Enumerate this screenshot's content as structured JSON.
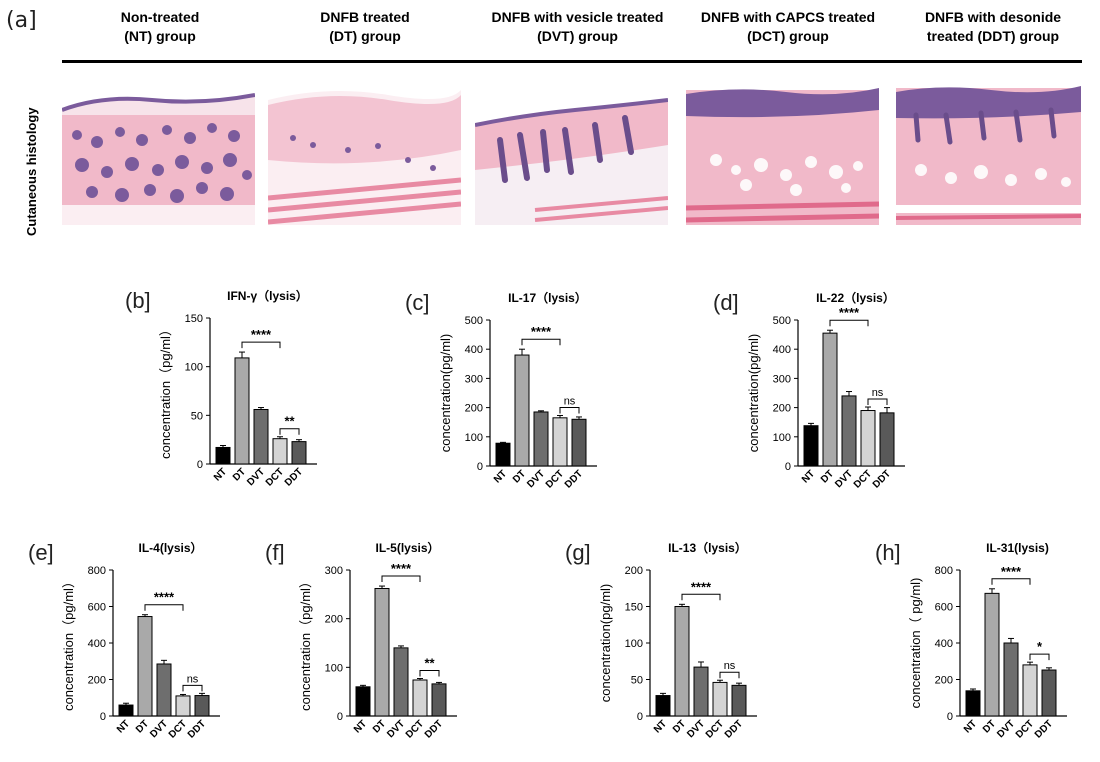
{
  "figure": {
    "panel_a_letter": "(a]",
    "groups": [
      {
        "line1": "Non-treated",
        "line2": "(NT) group"
      },
      {
        "line1": "DNFB treated",
        "line2": "(DT) group"
      },
      {
        "line1": "DNFB with vesicle treated",
        "line2": "(DVT) group"
      },
      {
        "line1": "DNFB with CAPCS treated",
        "line2": "(DCT) group"
      },
      {
        "line1": "DNFB with desonide",
        "line2": "treated (DDT) group"
      }
    ],
    "row_label": "Cutaneous histology"
  },
  "chart_data": [
    {
      "type": "bar",
      "panel": "(b]",
      "title": "IFN-γ（lysis）",
      "ylabel": "concentration（pg/ml）",
      "categories": [
        "NT",
        "DT",
        "DVT",
        "DCT",
        "DDT"
      ],
      "values": [
        17,
        109,
        56,
        26,
        23
      ],
      "errors": [
        2,
        6,
        2,
        2,
        2
      ],
      "ylim": [
        0,
        150
      ],
      "yticks": [
        0,
        50,
        100,
        150
      ],
      "sig": [
        {
          "from": "DT",
          "to": "DCT",
          "label": "****"
        },
        {
          "from": "DCT",
          "to": "DDT",
          "label": "**"
        }
      ]
    },
    {
      "type": "bar",
      "panel": "(c]",
      "title": "IL-17（lysis）",
      "ylabel": "concentration(pg/ml)",
      "categories": [
        "NT",
        "DT",
        "DVT",
        "DCT",
        "DDT"
      ],
      "values": [
        78,
        380,
        185,
        165,
        160
      ],
      "errors": [
        3,
        20,
        4,
        8,
        8
      ],
      "ylim": [
        0,
        500
      ],
      "yticks": [
        0,
        100,
        200,
        300,
        400,
        500
      ],
      "sig": [
        {
          "from": "DT",
          "to": "DCT",
          "label": "****"
        },
        {
          "from": "DCT",
          "to": "DDT",
          "label": "ns"
        }
      ]
    },
    {
      "type": "bar",
      "panel": "(d]",
      "title": "IL-22（lysis）",
      "ylabel": "concentration(pg/ml)",
      "categories": [
        "NT",
        "DT",
        "DVT",
        "DCT",
        "DDT"
      ],
      "values": [
        138,
        455,
        240,
        190,
        182
      ],
      "errors": [
        8,
        10,
        15,
        12,
        18
      ],
      "ylim": [
        0,
        500
      ],
      "yticks": [
        0,
        100,
        200,
        300,
        400,
        500
      ],
      "sig": [
        {
          "from": "DT",
          "to": "DCT",
          "label": "****"
        },
        {
          "from": "DCT",
          "to": "DDT",
          "label": "ns"
        }
      ]
    },
    {
      "type": "bar",
      "panel": "(e]",
      "title": "IL-4(lysis）",
      "ylabel": "concentration（pg/ml）",
      "categories": [
        "NT",
        "DT",
        "DVT",
        "DCT",
        "DDT"
      ],
      "values": [
        60,
        545,
        285,
        110,
        112
      ],
      "errors": [
        10,
        10,
        20,
        8,
        12
      ],
      "ylim": [
        0,
        800
      ],
      "yticks": [
        0,
        200,
        400,
        600,
        800
      ],
      "sig": [
        {
          "from": "DT",
          "to": "DCT",
          "label": "****"
        },
        {
          "from": "DCT",
          "to": "DDT",
          "label": "ns"
        }
      ]
    },
    {
      "type": "bar",
      "panel": "(f]",
      "title": "IL-5(lysis）",
      "ylabel": "concentration（pg/ml）",
      "categories": [
        "NT",
        "DT",
        "DVT",
        "DCT",
        "DDT"
      ],
      "values": [
        60,
        262,
        140,
        74,
        66
      ],
      "errors": [
        3,
        5,
        4,
        3,
        3
      ],
      "ylim": [
        0,
        300
      ],
      "yticks": [
        0,
        100,
        200,
        300
      ],
      "sig": [
        {
          "from": "DT",
          "to": "DCT",
          "label": "****"
        },
        {
          "from": "DCT",
          "to": "DDT",
          "label": "**"
        }
      ]
    },
    {
      "type": "bar",
      "panel": "(g]",
      "title": "IL-13（lysis）",
      "ylabel": "concentration(pg/ml)",
      "categories": [
        "NT",
        "DT",
        "DVT",
        "DCT",
        "DDT"
      ],
      "values": [
        28,
        150,
        67,
        46,
        42
      ],
      "errors": [
        3,
        3,
        7,
        3,
        3
      ],
      "ylim": [
        0,
        200
      ],
      "yticks": [
        0,
        50,
        100,
        150,
        200
      ],
      "sig": [
        {
          "from": "DT",
          "to": "DCT",
          "label": "****"
        },
        {
          "from": "DCT",
          "to": "DDT",
          "label": "ns"
        }
      ]
    },
    {
      "type": "bar",
      "panel": "(h]",
      "title": "IL-31(lysis)",
      "ylabel": "concentration（ pg/ml)",
      "categories": [
        "NT",
        "DT",
        "DVT",
        "DCT",
        "DDT"
      ],
      "values": [
        138,
        672,
        400,
        280,
        252
      ],
      "errors": [
        10,
        25,
        25,
        15,
        12
      ],
      "ylim": [
        0,
        800
      ],
      "yticks": [
        0,
        200,
        400,
        600,
        800
      ],
      "sig": [
        {
          "from": "DT",
          "to": "DCT",
          "label": "****"
        },
        {
          "from": "DCT",
          "to": "DDT",
          "label": "*"
        }
      ]
    }
  ],
  "colors": {
    "bars": [
      "#000000",
      "#a9a9a9",
      "#6e6e6e",
      "#d4d4d4",
      "#595959"
    ],
    "tissue_pink": "#f1b9c9",
    "tissue_purple": "#7b5b9c"
  }
}
